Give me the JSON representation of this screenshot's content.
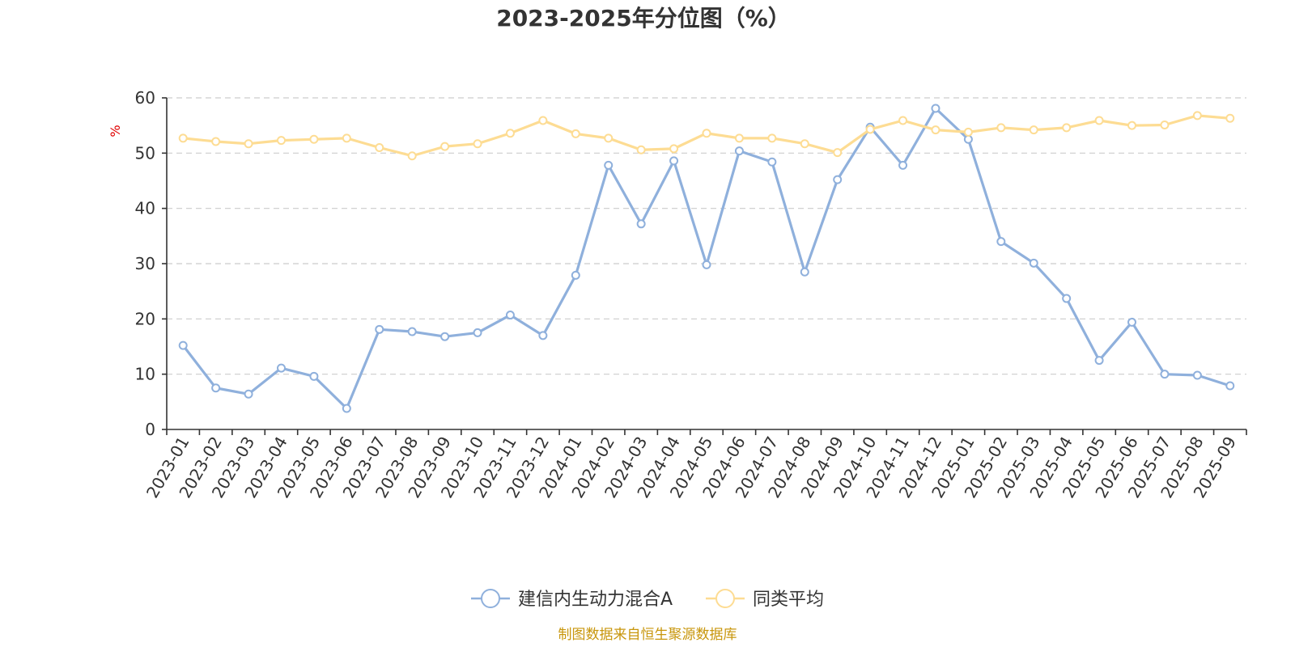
{
  "chart_data": {
    "type": "line",
    "title": "2023-2025年分位图（%）",
    "ylabel": "%",
    "xlabel": "",
    "ylim": [
      0,
      60
    ],
    "yticks": [
      0,
      10,
      20,
      30,
      40,
      50,
      60
    ],
    "grid": true,
    "legend_position": "bottom-center",
    "categories": [
      "2023-01",
      "2023-02",
      "2023-03",
      "2023-04",
      "2023-05",
      "2023-06",
      "2023-07",
      "2023-08",
      "2023-09",
      "2023-10",
      "2023-11",
      "2023-12",
      "2024-01",
      "2024-02",
      "2024-03",
      "2024-04",
      "2024-05",
      "2024-06",
      "2024-07",
      "2024-08",
      "2024-09",
      "2024-10",
      "2024-11",
      "2024-12",
      "2025-01",
      "2025-02",
      "2025-03",
      "2025-04",
      "2025-05",
      "2025-06",
      "2025-07",
      "2025-08",
      "2025-09"
    ],
    "series": [
      {
        "name": "建信内生动力混合A",
        "color": "#8fb0dc",
        "values": [
          15.2,
          7.5,
          6.4,
          11.1,
          9.6,
          3.8,
          18.1,
          17.7,
          16.8,
          17.5,
          20.7,
          17.0,
          27.9,
          47.8,
          37.2,
          48.6,
          29.8,
          50.4,
          48.4,
          28.5,
          45.2,
          54.7,
          47.8,
          58.1,
          52.5,
          34.0,
          30.1,
          23.7,
          12.5,
          19.4,
          10.0,
          9.8,
          7.9
        ]
      },
      {
        "name": "同类平均",
        "color": "#fddc93",
        "values": [
          52.7,
          52.1,
          51.7,
          52.3,
          52.5,
          52.7,
          51.0,
          49.5,
          51.2,
          51.7,
          53.6,
          55.9,
          53.5,
          52.7,
          50.6,
          50.8,
          53.6,
          52.7,
          52.7,
          51.7,
          50.1,
          54.3,
          55.9,
          54.2,
          53.8,
          54.6,
          54.2,
          54.6,
          55.9,
          55.0,
          55.1,
          56.8,
          56.3
        ]
      }
    ]
  },
  "source": "制图数据来自恒生聚源数据库"
}
